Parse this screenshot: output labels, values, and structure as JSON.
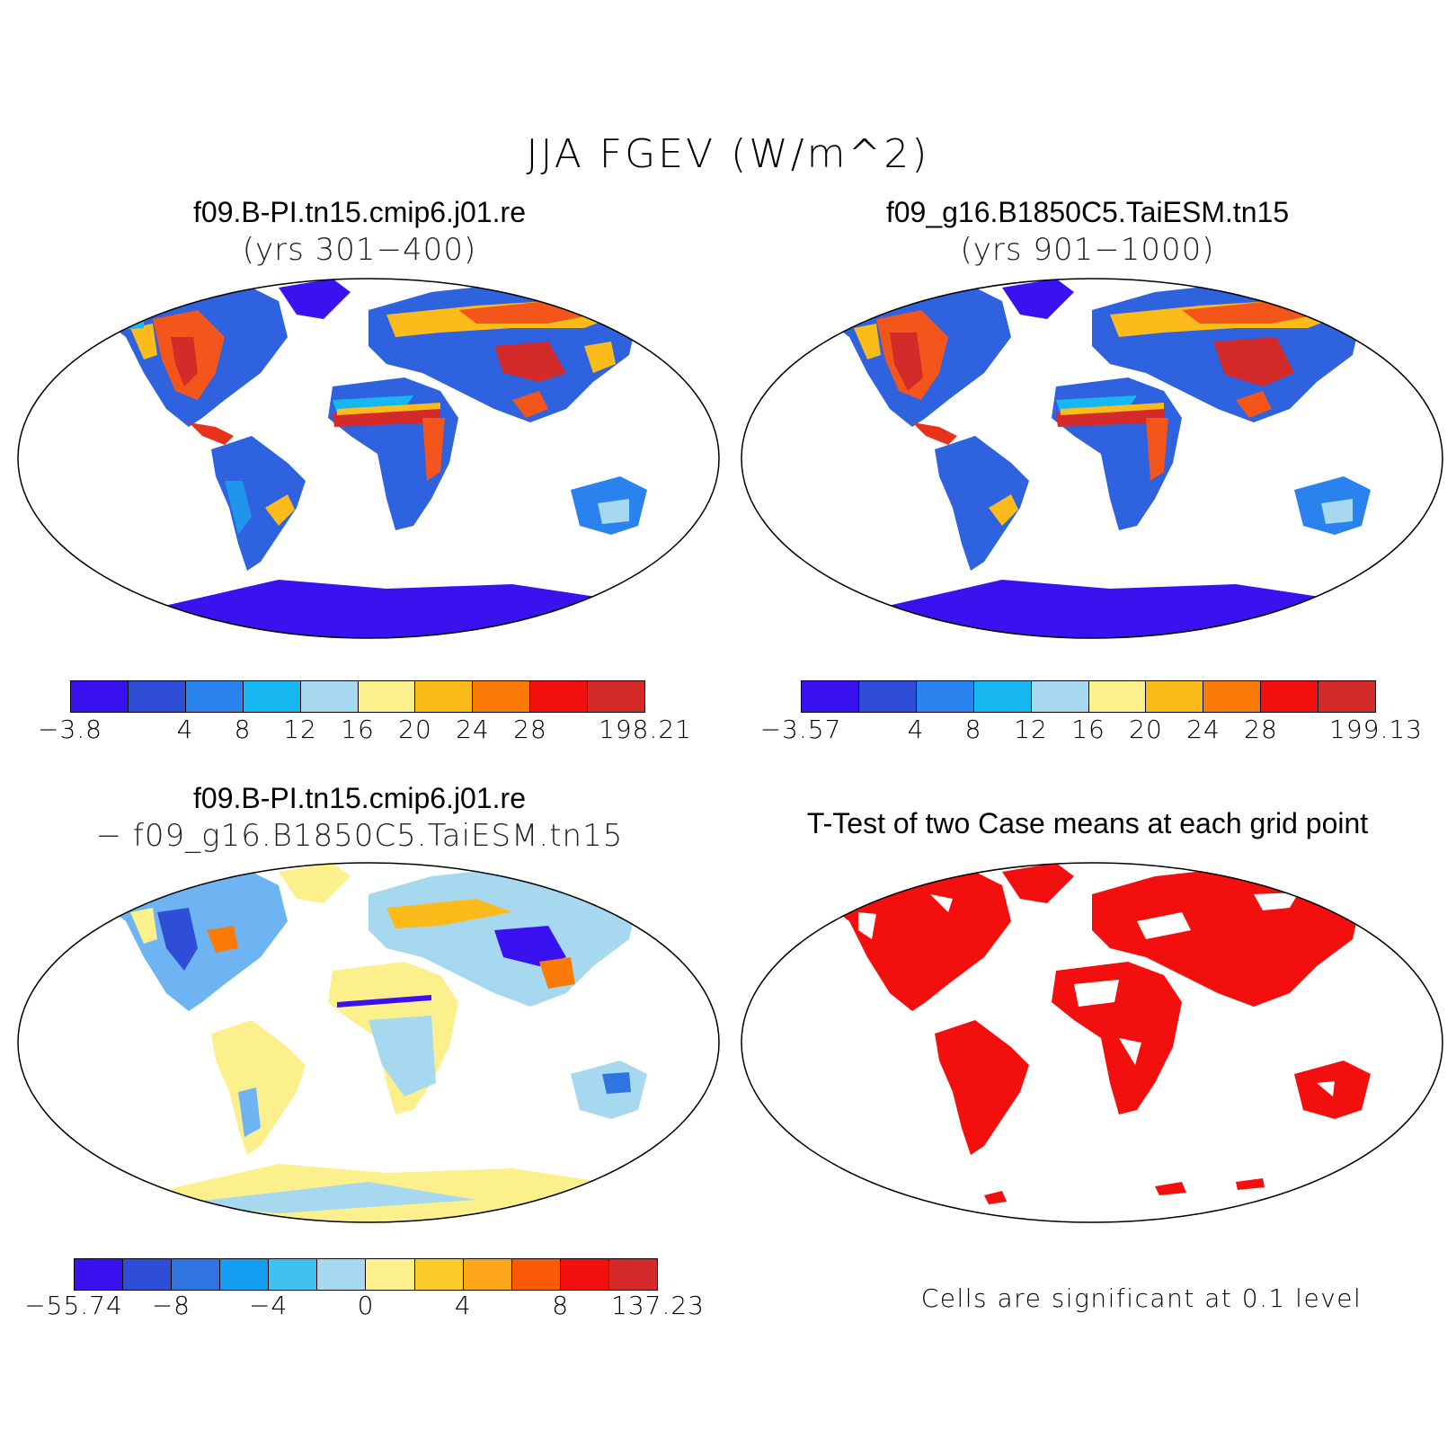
{
  "title": "JJA FGEV (W/m^2)",
  "panels": {
    "case1": {
      "title": "f09.B-PI.tn15.cmip6.j01.re",
      "subtitle": "(yrs 301−400)"
    },
    "case2": {
      "title": "f09_g16.B1850C5.TaiESM.tn15",
      "subtitle": "(yrs 901−1000)"
    },
    "diff": {
      "title": "f09.B-PI.tn15.cmip6.j01.re",
      "subtitle": "− f09_g16.B1850C5.TaiESM.tn15"
    },
    "ttest": {
      "title": "T-Test of two Case means at each grid point",
      "note": "Cells are significant at 0.1 level"
    }
  },
  "colorbars": {
    "case1": {
      "colors": [
        "#3a12f0",
        "#2e4ed8",
        "#2a82ee",
        "#17b8f2",
        "#a6d8f0",
        "#fbf08c",
        "#fbbb1a",
        "#fb7a08",
        "#f40f0f",
        "#d42a2a"
      ],
      "labels": [
        "−3.8",
        "4",
        "8",
        "12",
        "16",
        "20",
        "24",
        "28",
        "198.21"
      ]
    },
    "case2": {
      "colors": [
        "#3a12f0",
        "#2e4ed8",
        "#2a82ee",
        "#17b8f2",
        "#a6d8f0",
        "#fbf08c",
        "#fbbb1a",
        "#fb7a08",
        "#f40f0f",
        "#d42a2a"
      ],
      "labels": [
        "−3.57",
        "4",
        "8",
        "12",
        "16",
        "20",
        "24",
        "28",
        "199.13"
      ]
    },
    "diff": {
      "colors": [
        "#3a12f0",
        "#2e4ed8",
        "#2f74e0",
        "#139ef2",
        "#40c0ee",
        "#a6d8f0",
        "#fbf08c",
        "#fbcb2a",
        "#fba51a",
        "#fb5a08",
        "#f40f0f",
        "#d42a2a"
      ],
      "labels": [
        "−55.74",
        "−8",
        "−4",
        "0",
        "4",
        "8",
        "137.23"
      ]
    }
  }
}
